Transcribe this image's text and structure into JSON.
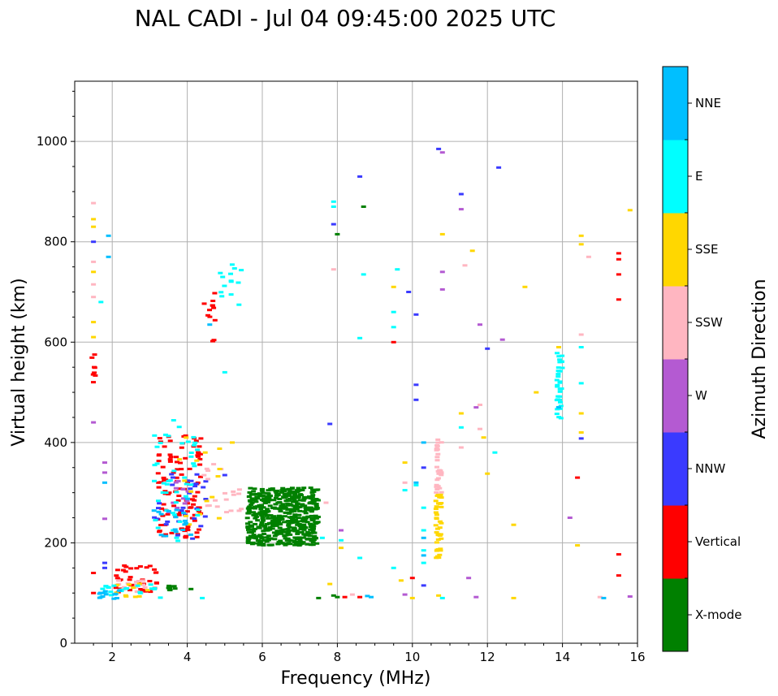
{
  "chart_data": {
    "type": "scatter",
    "title": "NAL CADI - Jul 04 09:45:00 2025 UTC",
    "xlabel": "Frequency (MHz)",
    "ylabel": "Virtual height (km)",
    "xlim": [
      1,
      16
    ],
    "ylim": [
      0,
      1120
    ],
    "xticks": [
      2,
      4,
      6,
      8,
      10,
      12,
      14,
      16
    ],
    "xtick_labels": [
      "2",
      "4",
      "6",
      "8",
      "10",
      "12",
      "14",
      "16"
    ],
    "yticks": [
      0,
      200,
      400,
      600,
      800,
      1000
    ],
    "ytick_labels": [
      "0",
      "200",
      "400",
      "600",
      "800",
      "1000"
    ],
    "grid": true,
    "colorbar": {
      "label": "Azimuth Direction",
      "categories": [
        "X-mode",
        "Vertical",
        "NNW",
        "W",
        "SSW",
        "SSE",
        "E",
        "NNE"
      ],
      "colors": {
        "X-mode": "#008000",
        "Vertical": "#ff0000",
        "NNW": "#3a3aff",
        "W": "#b45ad2",
        "SSW": "#ffb6c1",
        "SSE": "#ffd700",
        "E": "#00ffff",
        "NNE": "#00bfff"
      }
    },
    "series": [
      {
        "name": "X-mode",
        "clusters": [
          {
            "f": [
              5.6,
              7.5
            ],
            "h": [
              195,
              310
            ],
            "n": 520
          },
          {
            "f": [
              3.5,
              3.9
            ],
            "h": [
              105,
              115
            ],
            "n": 8
          }
        ],
        "points": [
          [
            7.9,
            95
          ],
          [
            8.0,
            92
          ],
          [
            8.7,
            870
          ],
          [
            8.0,
            815
          ],
          [
            7.5,
            90
          ],
          [
            4.1,
            108
          ]
        ]
      },
      {
        "name": "Vertical",
        "clusters": [
          {
            "f": [
              3.2,
              4.4
            ],
            "h": [
              210,
              420
            ],
            "n": 110
          },
          {
            "f": [
              2.0,
              3.2
            ],
            "h": [
              100,
              155
            ],
            "n": 40
          },
          {
            "f": [
              1.45,
              1.55
            ],
            "h": [
              520,
              600
            ],
            "n": 8
          },
          {
            "f": [
              4.4,
              4.8
            ],
            "h": [
              600,
              710
            ],
            "n": 12
          }
        ],
        "points": [
          [
            1.5,
            100
          ],
          [
            1.5,
            140
          ],
          [
            8.2,
            92
          ],
          [
            8.6,
            92
          ],
          [
            9.5,
            600
          ],
          [
            10.0,
            130
          ],
          [
            14.4,
            330
          ],
          [
            15.5,
            777
          ],
          [
            15.5,
            765
          ],
          [
            15.5,
            735
          ],
          [
            15.5,
            685
          ],
          [
            15.5,
            177
          ],
          [
            15.5,
            135
          ]
        ]
      },
      {
        "name": "NNW",
        "clusters": [
          {
            "f": [
              3.1,
              4.5
            ],
            "h": [
              205,
              350
            ],
            "n": 30
          }
        ],
        "points": [
          [
            1.5,
            800
          ],
          [
            1.8,
            160
          ],
          [
            1.8,
            150
          ],
          [
            7.9,
            835
          ],
          [
            8.6,
            930
          ],
          [
            9.9,
            700
          ],
          [
            10.1,
            655
          ],
          [
            10.1,
            515
          ],
          [
            10.1,
            485
          ],
          [
            10.3,
            350
          ],
          [
            10.3,
            115
          ],
          [
            10.7,
            985
          ],
          [
            11.3,
            895
          ],
          [
            12.3,
            948
          ],
          [
            12.0,
            587
          ],
          [
            14.5,
            408
          ],
          [
            7.8,
            437
          ],
          [
            5.0,
            335
          ]
        ]
      },
      {
        "name": "W",
        "clusters": [
          {
            "f": [
              3.5,
              4.2
            ],
            "h": [
              260,
              330
            ],
            "n": 12
          }
        ],
        "points": [
          [
            1.5,
            440
          ],
          [
            1.8,
            360
          ],
          [
            1.8,
            340
          ],
          [
            1.8,
            248
          ],
          [
            8.1,
            225
          ],
          [
            9.8,
            97
          ],
          [
            10.8,
            978
          ],
          [
            10.8,
            740
          ],
          [
            10.8,
            705
          ],
          [
            11.3,
            865
          ],
          [
            11.7,
            470
          ],
          [
            11.8,
            635
          ],
          [
            12.4,
            605
          ],
          [
            14.2,
            250
          ],
          [
            15.8,
            93
          ],
          [
            11.5,
            130
          ],
          [
            11.7,
            92
          ]
        ]
      },
      {
        "name": "SSW",
        "clusters": [
          {
            "f": [
              10.62,
              10.78
            ],
            "h": [
              300,
              415
            ],
            "n": 30
          },
          {
            "f": [
              4.4,
              5.5
            ],
            "h": [
              260,
              360
            ],
            "n": 20
          },
          {
            "f": [
              2.0,
              3.0
            ],
            "h": [
              100,
              125
            ],
            "n": 15
          }
        ],
        "points": [
          [
            1.5,
            877
          ],
          [
            1.5,
            760
          ],
          [
            1.5,
            715
          ],
          [
            1.5,
            690
          ],
          [
            7.9,
            745
          ],
          [
            8.4,
            97
          ],
          [
            9.8,
            320
          ],
          [
            11.3,
            390
          ],
          [
            11.4,
            753
          ],
          [
            11.8,
            475
          ],
          [
            11.8,
            427
          ],
          [
            14.5,
            615
          ],
          [
            14.7,
            770
          ],
          [
            15.0,
            92
          ],
          [
            7.7,
            280
          ]
        ]
      },
      {
        "name": "SSE",
        "clusters": [
          {
            "f": [
              10.62,
              10.78
            ],
            "h": [
              170,
              300
            ],
            "n": 40
          },
          {
            "f": [
              3.6,
              4.9
            ],
            "h": [
              230,
              420
            ],
            "n": 15
          },
          {
            "f": [
              2.0,
              3.0
            ],
            "h": [
              92,
              120
            ],
            "n": 10
          }
        ],
        "points": [
          [
            1.5,
            845
          ],
          [
            1.5,
            830
          ],
          [
            1.5,
            740
          ],
          [
            1.5,
            640
          ],
          [
            1.5,
            610
          ],
          [
            7.8,
            118
          ],
          [
            8.1,
            190
          ],
          [
            9.5,
            710
          ],
          [
            9.7,
            125
          ],
          [
            9.8,
            360
          ],
          [
            10.0,
            90
          ],
          [
            10.8,
            815
          ],
          [
            11.6,
            782
          ],
          [
            11.3,
            458
          ],
          [
            11.9,
            410
          ],
          [
            12.0,
            338
          ],
          [
            12.7,
            236
          ],
          [
            12.7,
            90
          ],
          [
            13.0,
            710
          ],
          [
            13.3,
            500
          ],
          [
            13.9,
            590
          ],
          [
            14.5,
            812
          ],
          [
            14.5,
            795
          ],
          [
            14.5,
            458
          ],
          [
            14.5,
            420
          ],
          [
            14.4,
            195
          ],
          [
            15.8,
            863
          ],
          [
            10.7,
            95
          ],
          [
            5.2,
            400
          ]
        ]
      },
      {
        "name": "E",
        "clusters": [
          {
            "f": [
              13.85,
              14.0
            ],
            "h": [
              445,
              580
            ],
            "n": 35
          },
          {
            "f": [
              4.8,
              5.5
            ],
            "h": [
              670,
              760
            ],
            "n": 14
          },
          {
            "f": [
              3.1,
              4.3
            ],
            "h": [
              200,
              445
            ],
            "n": 45
          },
          {
            "f": [
              1.7,
              3.3
            ],
            "h": [
              88,
              118
            ],
            "n": 22
          }
        ],
        "points": [
          [
            1.7,
            680
          ],
          [
            7.9,
            880
          ],
          [
            7.9,
            870
          ],
          [
            8.7,
            735
          ],
          [
            8.6,
            170
          ],
          [
            8.1,
            205
          ],
          [
            9.5,
            660
          ],
          [
            9.5,
            630
          ],
          [
            9.6,
            745
          ],
          [
            9.8,
            305
          ],
          [
            10.1,
            315
          ],
          [
            10.3,
            270
          ],
          [
            10.3,
            225
          ],
          [
            10.3,
            185
          ],
          [
            10.3,
            160
          ],
          [
            10.8,
            90
          ],
          [
            11.3,
            430
          ],
          [
            12.2,
            380
          ],
          [
            14.5,
            590
          ],
          [
            14.5,
            518
          ],
          [
            4.4,
            90
          ],
          [
            8.6,
            608
          ],
          [
            5.0,
            540
          ],
          [
            7.6,
            210
          ],
          [
            9.5,
            150
          ]
        ]
      },
      {
        "name": "NNE",
        "clusters": [
          {
            "f": [
              3.1,
              4.2
            ],
            "h": [
              205,
              300
            ],
            "n": 18
          },
          {
            "f": [
              1.6,
              2.2
            ],
            "h": [
              88,
              108
            ],
            "n": 12
          }
        ],
        "points": [
          [
            1.9,
            812
          ],
          [
            1.9,
            770
          ],
          [
            1.8,
            320
          ],
          [
            8.9,
            92
          ],
          [
            8.8,
            94
          ],
          [
            10.1,
            320
          ],
          [
            10.3,
            400
          ],
          [
            10.3,
            210
          ],
          [
            10.3,
            175
          ],
          [
            15.1,
            90
          ],
          [
            13.9,
            470
          ],
          [
            4.6,
            635
          ]
        ]
      }
    ]
  }
}
